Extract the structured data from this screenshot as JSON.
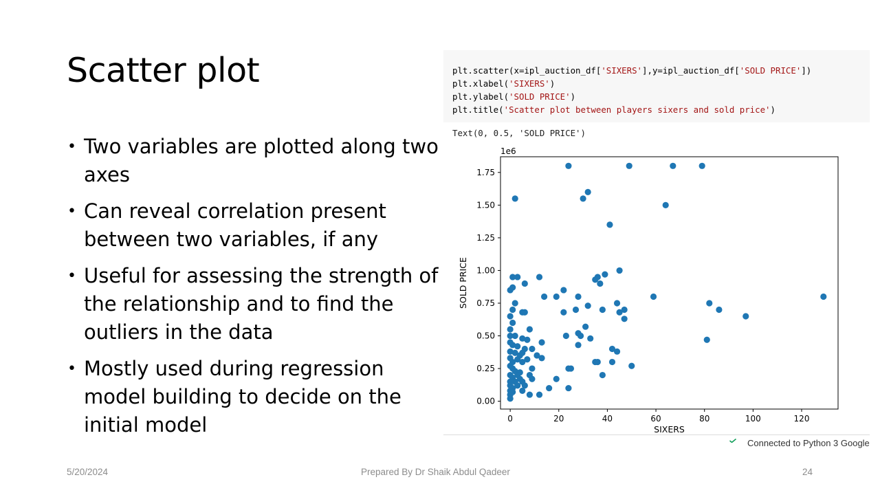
{
  "slide": {
    "title": "Scatter plot",
    "bullets": [
      "Two variables are plotted along two axes",
      "Can reveal correlation present between two variables, if any",
      " Useful for assessing the strength of the relationship and to find the outliers in the data",
      " Mostly used during regression model building to decide on the initial model"
    ],
    "footer": {
      "date": "5/20/2024",
      "author": "Prepared By Dr Shaik Abdul Qadeer",
      "page": "24"
    }
  },
  "notebook": {
    "code": [
      {
        "pre": "plt.scatter(x=ipl_auction_df[",
        "s1": "'SIXERS'",
        "mid": "],y=ipl_auction_df[",
        "s2": "'SOLD PRICE'",
        "post": "])"
      },
      {
        "pre": "plt.xlabel(",
        "s1": "'SIXERS'",
        "mid": "",
        "s2": "",
        "post": ")"
      },
      {
        "pre": "plt.ylabel(",
        "s1": "'SOLD PRICE'",
        "mid": "",
        "s2": "",
        "post": ")"
      },
      {
        "pre": "plt.title(",
        "s1": "'Scatter plot between players sixers and sold price'",
        "mid": "",
        "s2": "",
        "post": ")"
      }
    ],
    "output_text": "Text(0, 0.5, 'SOLD PRICE')",
    "status_text": "Connected to Python 3 Google",
    "colors": {
      "code_bg": "#f7f7f7",
      "string": "#a31515",
      "point": "#1f77b4",
      "check": "#0f9d58"
    }
  },
  "chart_data": {
    "type": "scatter",
    "title": "",
    "xlabel": "SIXERS",
    "ylabel": "SOLD PRICE",
    "y_offset_label": "1e6",
    "xlim": [
      -4,
      135
    ],
    "ylim": [
      -0.06,
      1.87
    ],
    "x_ticks": [
      0,
      20,
      40,
      60,
      80,
      100,
      120
    ],
    "y_ticks": [
      0.0,
      0.25,
      0.5,
      0.75,
      1.0,
      1.25,
      1.5,
      1.75
    ],
    "y_tick_labels": [
      "0.00",
      "0.25",
      "0.50",
      "0.75",
      "1.00",
      "1.25",
      "1.50",
      "1.75"
    ],
    "grid": false,
    "points": [
      [
        24,
        1.8
      ],
      [
        49,
        1.8
      ],
      [
        67,
        1.8
      ],
      [
        79,
        1.8
      ],
      [
        2,
        1.55
      ],
      [
        30,
        1.55
      ],
      [
        32,
        1.6
      ],
      [
        64,
        1.5
      ],
      [
        41,
        1.35
      ],
      [
        1,
        0.95
      ],
      [
        3,
        0.95
      ],
      [
        12,
        0.95
      ],
      [
        0,
        0.85
      ],
      [
        1,
        0.87
      ],
      [
        6,
        0.9
      ],
      [
        22,
        0.85
      ],
      [
        35,
        0.93
      ],
      [
        36,
        0.95
      ],
      [
        37,
        0.9
      ],
      [
        39,
        0.97
      ],
      [
        45,
        1.0
      ],
      [
        14,
        0.8
      ],
      [
        19,
        0.8
      ],
      [
        28,
        0.8
      ],
      [
        59,
        0.8
      ],
      [
        129,
        0.8
      ],
      [
        2,
        0.75
      ],
      [
        44,
        0.75
      ],
      [
        82,
        0.75
      ],
      [
        86,
        0.7
      ],
      [
        97,
        0.65
      ],
      [
        1,
        0.7
      ],
      [
        5,
        0.68
      ],
      [
        6,
        0.68
      ],
      [
        22,
        0.68
      ],
      [
        27,
        0.7
      ],
      [
        32,
        0.73
      ],
      [
        38,
        0.7
      ],
      [
        45,
        0.68
      ],
      [
        47,
        0.7
      ],
      [
        47,
        0.63
      ],
      [
        0,
        0.65
      ],
      [
        1,
        0.6
      ],
      [
        0,
        0.55
      ],
      [
        8,
        0.55
      ],
      [
        31,
        0.57
      ],
      [
        0,
        0.5
      ],
      [
        2,
        0.5
      ],
      [
        5,
        0.48
      ],
      [
        7,
        0.47
      ],
      [
        23,
        0.5
      ],
      [
        28,
        0.52
      ],
      [
        29,
        0.5
      ],
      [
        33,
        0.48
      ],
      [
        81,
        0.47
      ],
      [
        0,
        0.45
      ],
      [
        1,
        0.43
      ],
      [
        3,
        0.42
      ],
      [
        6,
        0.4
      ],
      [
        9,
        0.4
      ],
      [
        13,
        0.45
      ],
      [
        28,
        0.43
      ],
      [
        42,
        0.4
      ],
      [
        44,
        0.38
      ],
      [
        0,
        0.38
      ],
      [
        2,
        0.37
      ],
      [
        4,
        0.35
      ],
      [
        5,
        0.37
      ],
      [
        11,
        0.35
      ],
      [
        0,
        0.33
      ],
      [
        1,
        0.3
      ],
      [
        3,
        0.32
      ],
      [
        5,
        0.3
      ],
      [
        7,
        0.32
      ],
      [
        13,
        0.33
      ],
      [
        35,
        0.3
      ],
      [
        36,
        0.3
      ],
      [
        42,
        0.3
      ],
      [
        50,
        0.27
      ],
      [
        0,
        0.27
      ],
      [
        1,
        0.25
      ],
      [
        2,
        0.23
      ],
      [
        4,
        0.22
      ],
      [
        9,
        0.25
      ],
      [
        24,
        0.25
      ],
      [
        25,
        0.25
      ],
      [
        0,
        0.2
      ],
      [
        1,
        0.18
      ],
      [
        3,
        0.2
      ],
      [
        8,
        0.2
      ],
      [
        38,
        0.2
      ],
      [
        0,
        0.15
      ],
      [
        2,
        0.15
      ],
      [
        4,
        0.17
      ],
      [
        5,
        0.15
      ],
      [
        9,
        0.17
      ],
      [
        19,
        0.17
      ],
      [
        0,
        0.12
      ],
      [
        1,
        0.1
      ],
      [
        3,
        0.12
      ],
      [
        6,
        0.12
      ],
      [
        16,
        0.1
      ],
      [
        24,
        0.1
      ],
      [
        0,
        0.08
      ],
      [
        1,
        0.07
      ],
      [
        5,
        0.08
      ],
      [
        8,
        0.05
      ],
      [
        12,
        0.05
      ],
      [
        0,
        0.05
      ],
      [
        0,
        0.02
      ]
    ]
  }
}
